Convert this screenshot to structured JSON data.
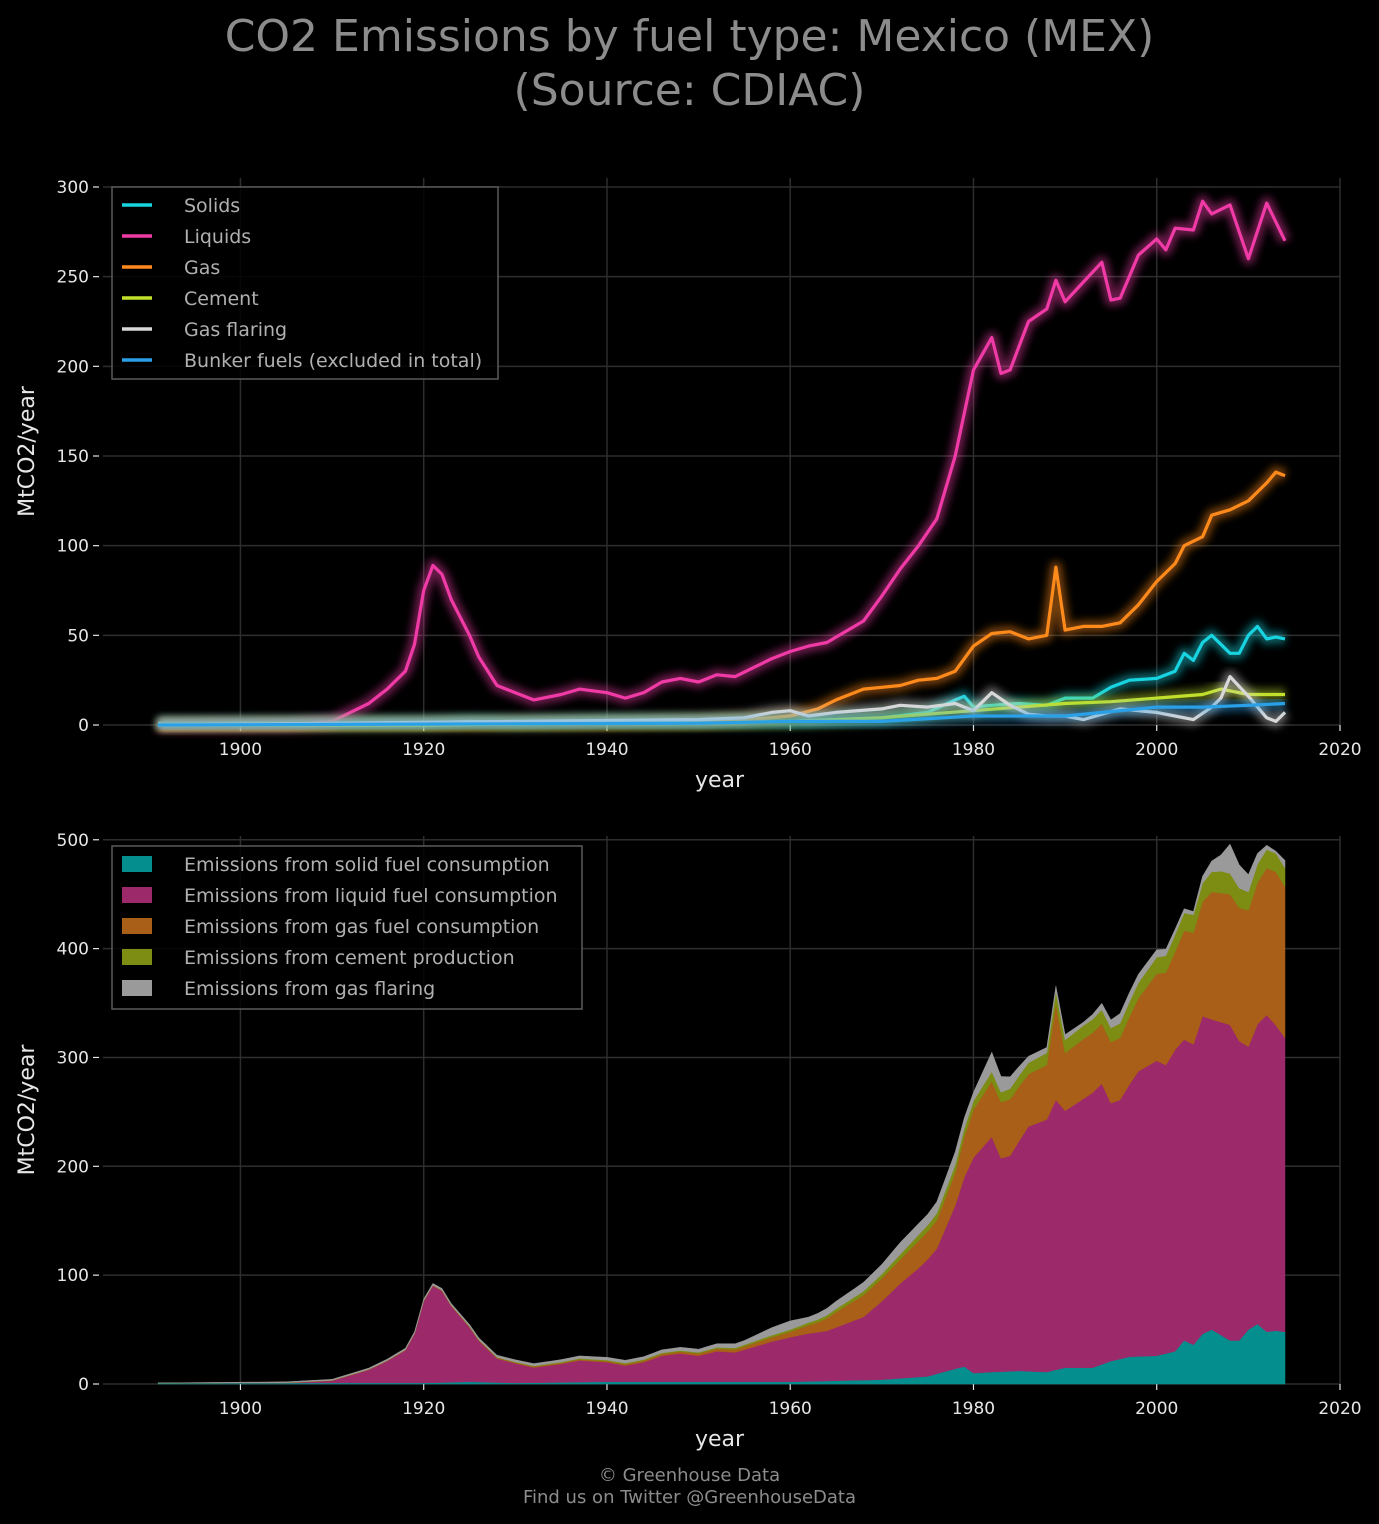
{
  "title": {
    "line1": "CO2 Emissions by fuel type: Mexico (MEX)",
    "line2": "(Source: CDIAC)"
  },
  "footer": {
    "line1": "© Greenhouse Data",
    "line2": "Find us on Twitter @GreenhouseData"
  },
  "chart_data": [
    {
      "type": "line",
      "xlabel": "year",
      "ylabel": "MtCO2/year",
      "xlim": [
        1885,
        2020
      ],
      "ylim": [
        0,
        300
      ],
      "xticks": [
        1900,
        1920,
        1940,
        1960,
        1980,
        2000,
        2020
      ],
      "yticks": [
        0,
        50,
        100,
        150,
        200,
        250,
        300
      ],
      "grid": true,
      "legend_position": "top-left",
      "series": [
        {
          "name": "Solids",
          "color": "#17d4e0",
          "x": [
            1891,
            1900,
            1910,
            1920,
            1925,
            1930,
            1940,
            1950,
            1960,
            1965,
            1970,
            1975,
            1978,
            1979,
            1980,
            1982,
            1985,
            1988,
            1990,
            1993,
            1995,
            1997,
            2000,
            2002,
            2003,
            2004,
            2005,
            2006,
            2008,
            2009,
            2010,
            2011,
            2012,
            2013,
            2014
          ],
          "y": [
            1,
            1,
            1,
            1,
            2,
            1,
            2,
            2,
            2,
            3,
            4,
            7,
            14,
            16,
            10,
            11,
            12,
            11,
            15,
            15,
            21,
            25,
            26,
            30,
            40,
            36,
            46,
            50,
            40,
            40,
            50,
            55,
            48,
            49,
            48
          ]
        },
        {
          "name": "Liquids",
          "color": "#f03aa6",
          "x": [
            1891,
            1905,
            1910,
            1912,
            1914,
            1916,
            1918,
            1919,
            1920,
            1921,
            1922,
            1923,
            1925,
            1926,
            1928,
            1930,
            1932,
            1935,
            1937,
            1940,
            1942,
            1944,
            1946,
            1948,
            1950,
            1952,
            1954,
            1956,
            1958,
            1960,
            1962,
            1964,
            1966,
            1968,
            1970,
            1972,
            1974,
            1976,
            1978,
            1980,
            1982,
            1983,
            1984,
            1986,
            1988,
            1989,
            1990,
            1992,
            1994,
            1995,
            1996,
            1998,
            2000,
            2001,
            2002,
            2004,
            2005,
            2006,
            2008,
            2010,
            2012,
            2014
          ],
          "y": [
            0,
            0,
            2,
            7,
            12,
            20,
            30,
            45,
            75,
            89,
            84,
            70,
            50,
            38,
            22,
            18,
            14,
            17,
            20,
            18,
            15,
            18,
            24,
            26,
            24,
            28,
            27,
            32,
            37,
            41,
            44,
            46,
            52,
            58,
            72,
            87,
            100,
            115,
            150,
            198,
            216,
            196,
            198,
            225,
            232,
            248,
            236,
            247,
            258,
            237,
            238,
            262,
            271,
            265,
            277,
            276,
            292,
            285,
            290,
            260,
            291,
            270
          ]
        },
        {
          "name": "Gas",
          "color": "#ff8a1c",
          "x": [
            1891,
            1940,
            1950,
            1955,
            1958,
            1960,
            1963,
            1965,
            1968,
            1970,
            1972,
            1974,
            1976,
            1978,
            1980,
            1982,
            1984,
            1986,
            1988,
            1989,
            1990,
            1992,
            1994,
            1996,
            1998,
            2000,
            2002,
            2003,
            2005,
            2006,
            2008,
            2010,
            2012,
            2013,
            2014
          ],
          "y": [
            0,
            1,
            2,
            3,
            4,
            5,
            9,
            14,
            20,
            21,
            22,
            25,
            26,
            30,
            44,
            51,
            52,
            48,
            50,
            88,
            53,
            55,
            55,
            57,
            67,
            80,
            90,
            100,
            105,
            117,
            120,
            125,
            135,
            141,
            139
          ]
        },
        {
          "name": "Cement",
          "color": "#c1e02c",
          "x": [
            1891,
            1920,
            1940,
            1950,
            1960,
            1965,
            1970,
            1975,
            1980,
            1985,
            1990,
            1995,
            2000,
            2005,
            2007,
            2010,
            2014
          ],
          "y": [
            0,
            0,
            1,
            1,
            2,
            3,
            4,
            6,
            8,
            10,
            12,
            13,
            15,
            17,
            20,
            17,
            17
          ]
        },
        {
          "name": "Gas flaring",
          "color": "#d8d8d8",
          "x": [
            1891,
            1950,
            1955,
            1958,
            1960,
            1962,
            1965,
            1970,
            1972,
            1975,
            1978,
            1980,
            1982,
            1984,
            1986,
            1988,
            1990,
            1992,
            1994,
            1996,
            1998,
            2000,
            2002,
            2004,
            2006,
            2007,
            2008,
            2010,
            2012,
            2013,
            2014
          ],
          "y": [
            0,
            3,
            4,
            7,
            8,
            5,
            7,
            9,
            11,
            10,
            12,
            8,
            18,
            11,
            6,
            5,
            5,
            3,
            6,
            9,
            8,
            7,
            5,
            3,
            10,
            15,
            27,
            16,
            4,
            2,
            7
          ]
        },
        {
          "name": "Bunker fuels (excluded in total)",
          "color": "#2aa0e6",
          "x": [
            1891,
            1950,
            1960,
            1970,
            1980,
            1990,
            2000,
            2005,
            2010,
            2014
          ],
          "y": [
            0,
            1,
            2,
            2,
            5,
            5,
            10,
            10,
            11,
            12
          ]
        }
      ]
    },
    {
      "type": "area",
      "stacked": true,
      "xlabel": "year",
      "ylabel": "MtCO2/year",
      "xlim": [
        1885,
        2020
      ],
      "ylim": [
        0,
        520
      ],
      "xticks": [
        1900,
        1920,
        1940,
        1960,
        1980,
        2000,
        2020
      ],
      "yticks": [
        0,
        100,
        200,
        300,
        400,
        500
      ],
      "grid": true,
      "legend_position": "top-left",
      "series": [
        {
          "name": "Emissions from solid fuel consumption",
          "color": "#048e8e",
          "source": "Solids"
        },
        {
          "name": "Emissions from liquid fuel consumption",
          "color": "#9c2a6a",
          "source": "Liquids"
        },
        {
          "name": "Emissions from gas fuel consumption",
          "color": "#a95f17",
          "source": "Gas"
        },
        {
          "name": "Emissions from cement production",
          "color": "#7d8c12",
          "source": "Cement"
        },
        {
          "name": "Emissions from gas flaring",
          "color": "#9a9a9a",
          "source": "Gas flaring"
        }
      ]
    }
  ]
}
